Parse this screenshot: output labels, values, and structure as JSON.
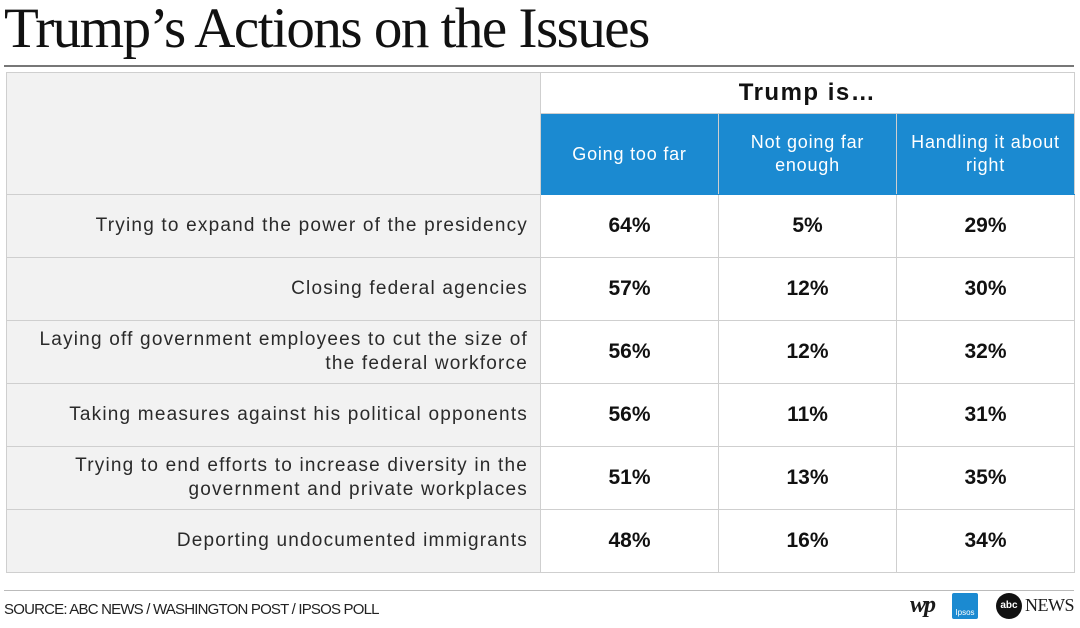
{
  "title": "Trump’s Actions on the Issues",
  "chart_data": {
    "type": "table",
    "group_header": "Trump is…",
    "columns": [
      "Going too far",
      "Not going far enough",
      "Handling it about right"
    ],
    "rows": [
      {
        "label": "Trying to expand the power of the presidency",
        "values": [
          "64%",
          "5%",
          "29%"
        ]
      },
      {
        "label": "Closing federal agencies",
        "values": [
          "57%",
          "12%",
          "30%"
        ]
      },
      {
        "label": "Laying off government employees to cut the size of the federal workforce",
        "values": [
          "56%",
          "12%",
          "32%"
        ]
      },
      {
        "label": "Taking measures against his political opponents",
        "values": [
          "56%",
          "11%",
          "31%"
        ]
      },
      {
        "label": "Trying to end efforts to increase diversity in the government and private workplaces",
        "values": [
          "51%",
          "13%",
          "35%"
        ]
      },
      {
        "label": "Deporting undocumented immigrants",
        "values": [
          "48%",
          "16%",
          "34%"
        ]
      }
    ],
    "header_color": "#1b8ad1"
  },
  "footer": {
    "source": "SOURCE: ABC NEWS / WASHINGTON POST / IPSOS POLL",
    "logos": {
      "wp": "wp",
      "ipsos": "Ipsos",
      "abc": "abc",
      "abc_news": "NEWS"
    }
  }
}
